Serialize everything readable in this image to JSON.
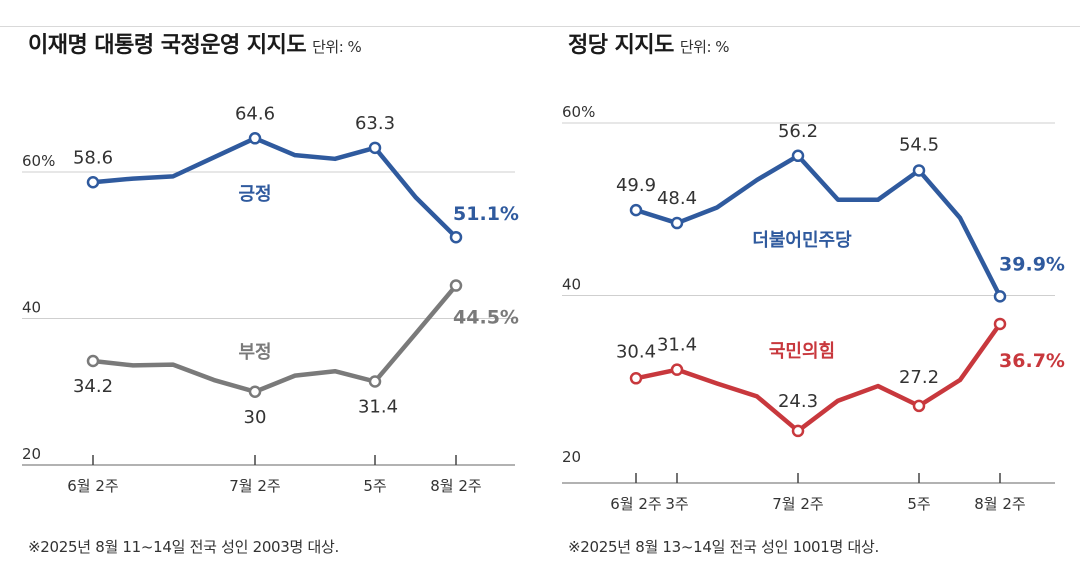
{
  "colors": {
    "blue": "#2f5a9e",
    "gray": "#7a7a7a",
    "red": "#c8383d",
    "grid": "#cfcfcf",
    "axis": "#444444"
  },
  "left": {
    "title": "이재명 대통령 국정운영 지지도",
    "unit": "단위: %",
    "note": "※2025년 8월 11~14일 전국 성인 2003명 대상."
  },
  "right": {
    "title": "정당 지지도",
    "unit": "단위: %",
    "note": "※2025년 8월 13~14일 전국 성인 1001명 대상."
  },
  "chart_data": [
    {
      "type": "line",
      "title": "이재명 대통령 국정운영 지지도",
      "unit": "단위: %",
      "x": [
        0,
        1,
        2,
        3,
        4,
        5,
        6,
        7,
        8,
        9
      ],
      "x_ticks": [
        {
          "x": 0,
          "label": "6월 2주"
        },
        {
          "x": 4,
          "label": "7월 2주"
        },
        {
          "x": 7,
          "label": "5주"
        },
        {
          "x": 9,
          "label": "8월 2주"
        }
      ],
      "y_ticks": [
        {
          "value": 60,
          "label": "60%"
        },
        {
          "value": 40,
          "label": "40"
        },
        {
          "value": 20,
          "label": "20"
        }
      ],
      "ylim": [
        19,
        65
      ],
      "series": [
        {
          "name": "긍정",
          "color": "#2f5a9e",
          "values": [
            58.6,
            59.1,
            59.4,
            62.0,
            64.6,
            62.3,
            61.8,
            63.3,
            56.5,
            51.1
          ],
          "labels": [
            {
              "index": 0,
              "text": "58.6"
            },
            {
              "index": 4,
              "text": "64.6"
            },
            {
              "index": 7,
              "text": "63.3"
            },
            {
              "index": 9,
              "text": "51.1%",
              "bold": true
            }
          ]
        },
        {
          "name": "부정",
          "color": "#7a7a7a",
          "values": [
            34.2,
            33.6,
            33.7,
            31.6,
            30.0,
            32.2,
            32.8,
            31.4,
            38.0,
            44.5
          ],
          "labels": [
            {
              "index": 0,
              "text": "34.2"
            },
            {
              "index": 4,
              "text": "30"
            },
            {
              "index": 7,
              "text": "31.4"
            },
            {
              "index": 9,
              "text": "44.5%",
              "bold": true
            }
          ]
        }
      ]
    },
    {
      "type": "line",
      "title": "정당 지지도",
      "unit": "단위: %",
      "x": [
        0,
        1,
        2,
        3,
        4,
        5,
        6,
        7,
        8,
        9
      ],
      "x_ticks": [
        {
          "x": 0,
          "label": "6월 2주"
        },
        {
          "x": 1,
          "label": "3주"
        },
        {
          "x": 4,
          "label": "7월 2주"
        },
        {
          "x": 7,
          "label": "5주"
        },
        {
          "x": 9,
          "label": "8월 2주"
        }
      ],
      "y_ticks": [
        {
          "value": 60,
          "label": "60%"
        },
        {
          "value": 40,
          "label": "40"
        },
        {
          "value": 20,
          "label": "20"
        }
      ],
      "ylim": [
        19,
        60
      ],
      "series": [
        {
          "name": "더불어민주당",
          "color": "#2f5a9e",
          "values": [
            49.9,
            48.4,
            50.2,
            53.4,
            56.2,
            51.1,
            51.1,
            54.5,
            49.0,
            39.9
          ],
          "labels": [
            {
              "index": 0,
              "text": "49.9"
            },
            {
              "index": 1,
              "text": "48.4"
            },
            {
              "index": 4,
              "text": "56.2"
            },
            {
              "index": 7,
              "text": "54.5"
            },
            {
              "index": 9,
              "text": "39.9%",
              "bold": true
            }
          ]
        },
        {
          "name": "국민의힘",
          "color": "#c8383d",
          "values": [
            30.4,
            31.4,
            29.8,
            28.3,
            24.3,
            27.8,
            29.5,
            27.2,
            30.2,
            36.7
          ],
          "labels": [
            {
              "index": 0,
              "text": "30.4"
            },
            {
              "index": 1,
              "text": "31.4"
            },
            {
              "index": 4,
              "text": "24.3"
            },
            {
              "index": 7,
              "text": "27.2"
            },
            {
              "index": 9,
              "text": "36.7%",
              "bold": true
            }
          ]
        }
      ]
    }
  ]
}
